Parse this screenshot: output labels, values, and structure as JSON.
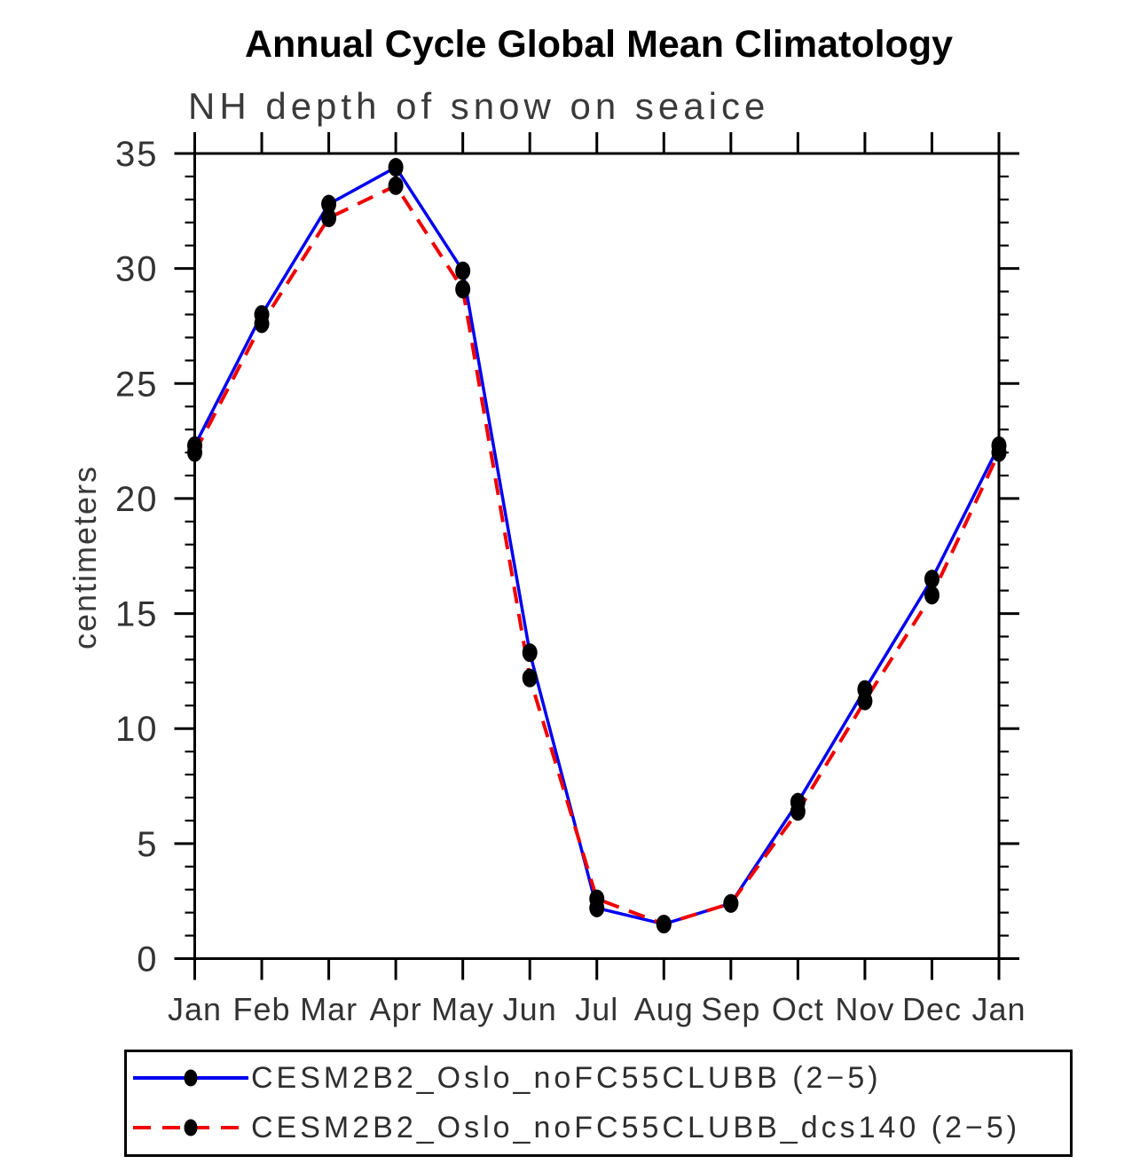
{
  "page": {
    "title": "Annual Cycle Global Mean Climatology",
    "subtitle": "NH depth of snow on seaice"
  },
  "chart_data": {
    "type": "line",
    "title": "Annual Cycle Global Mean Climatology",
    "subtitle": "NH depth of snow on seaice",
    "xlabel": "",
    "ylabel": "centimeters",
    "categories": [
      "Jan",
      "Feb",
      "Mar",
      "Apr",
      "May",
      "Jun",
      "Jul",
      "Aug",
      "Sep",
      "Oct",
      "Nov",
      "Dec",
      "Jan"
    ],
    "ylim": [
      0,
      35
    ],
    "ytick_major_step": 5,
    "ytick_minor_step": 1,
    "yticklabels": [
      "0",
      "5",
      "10",
      "15",
      "20",
      "25",
      "30",
      "35"
    ],
    "grid": false,
    "legend_position": "bottom-left-box",
    "marker": "black-dot",
    "series": [
      {
        "name": "CESM2B2_Oslo_noFC55CLUBB (2−5)",
        "color": "#0000F0",
        "line_style": "solid",
        "values": [
          22.3,
          28.0,
          32.8,
          34.4,
          29.9,
          13.3,
          2.2,
          1.5,
          2.4,
          6.8,
          11.7,
          16.5,
          22.3
        ]
      },
      {
        "name": "CESM2B2_Oslo_noFC55CLUBB_dcs140 (2−5)",
        "color": "#F00000",
        "line_style": "dashed",
        "values": [
          22.0,
          27.6,
          32.2,
          33.6,
          29.1,
          12.2,
          2.6,
          1.5,
          2.4,
          6.4,
          11.2,
          15.8,
          22.0
        ]
      }
    ]
  }
}
